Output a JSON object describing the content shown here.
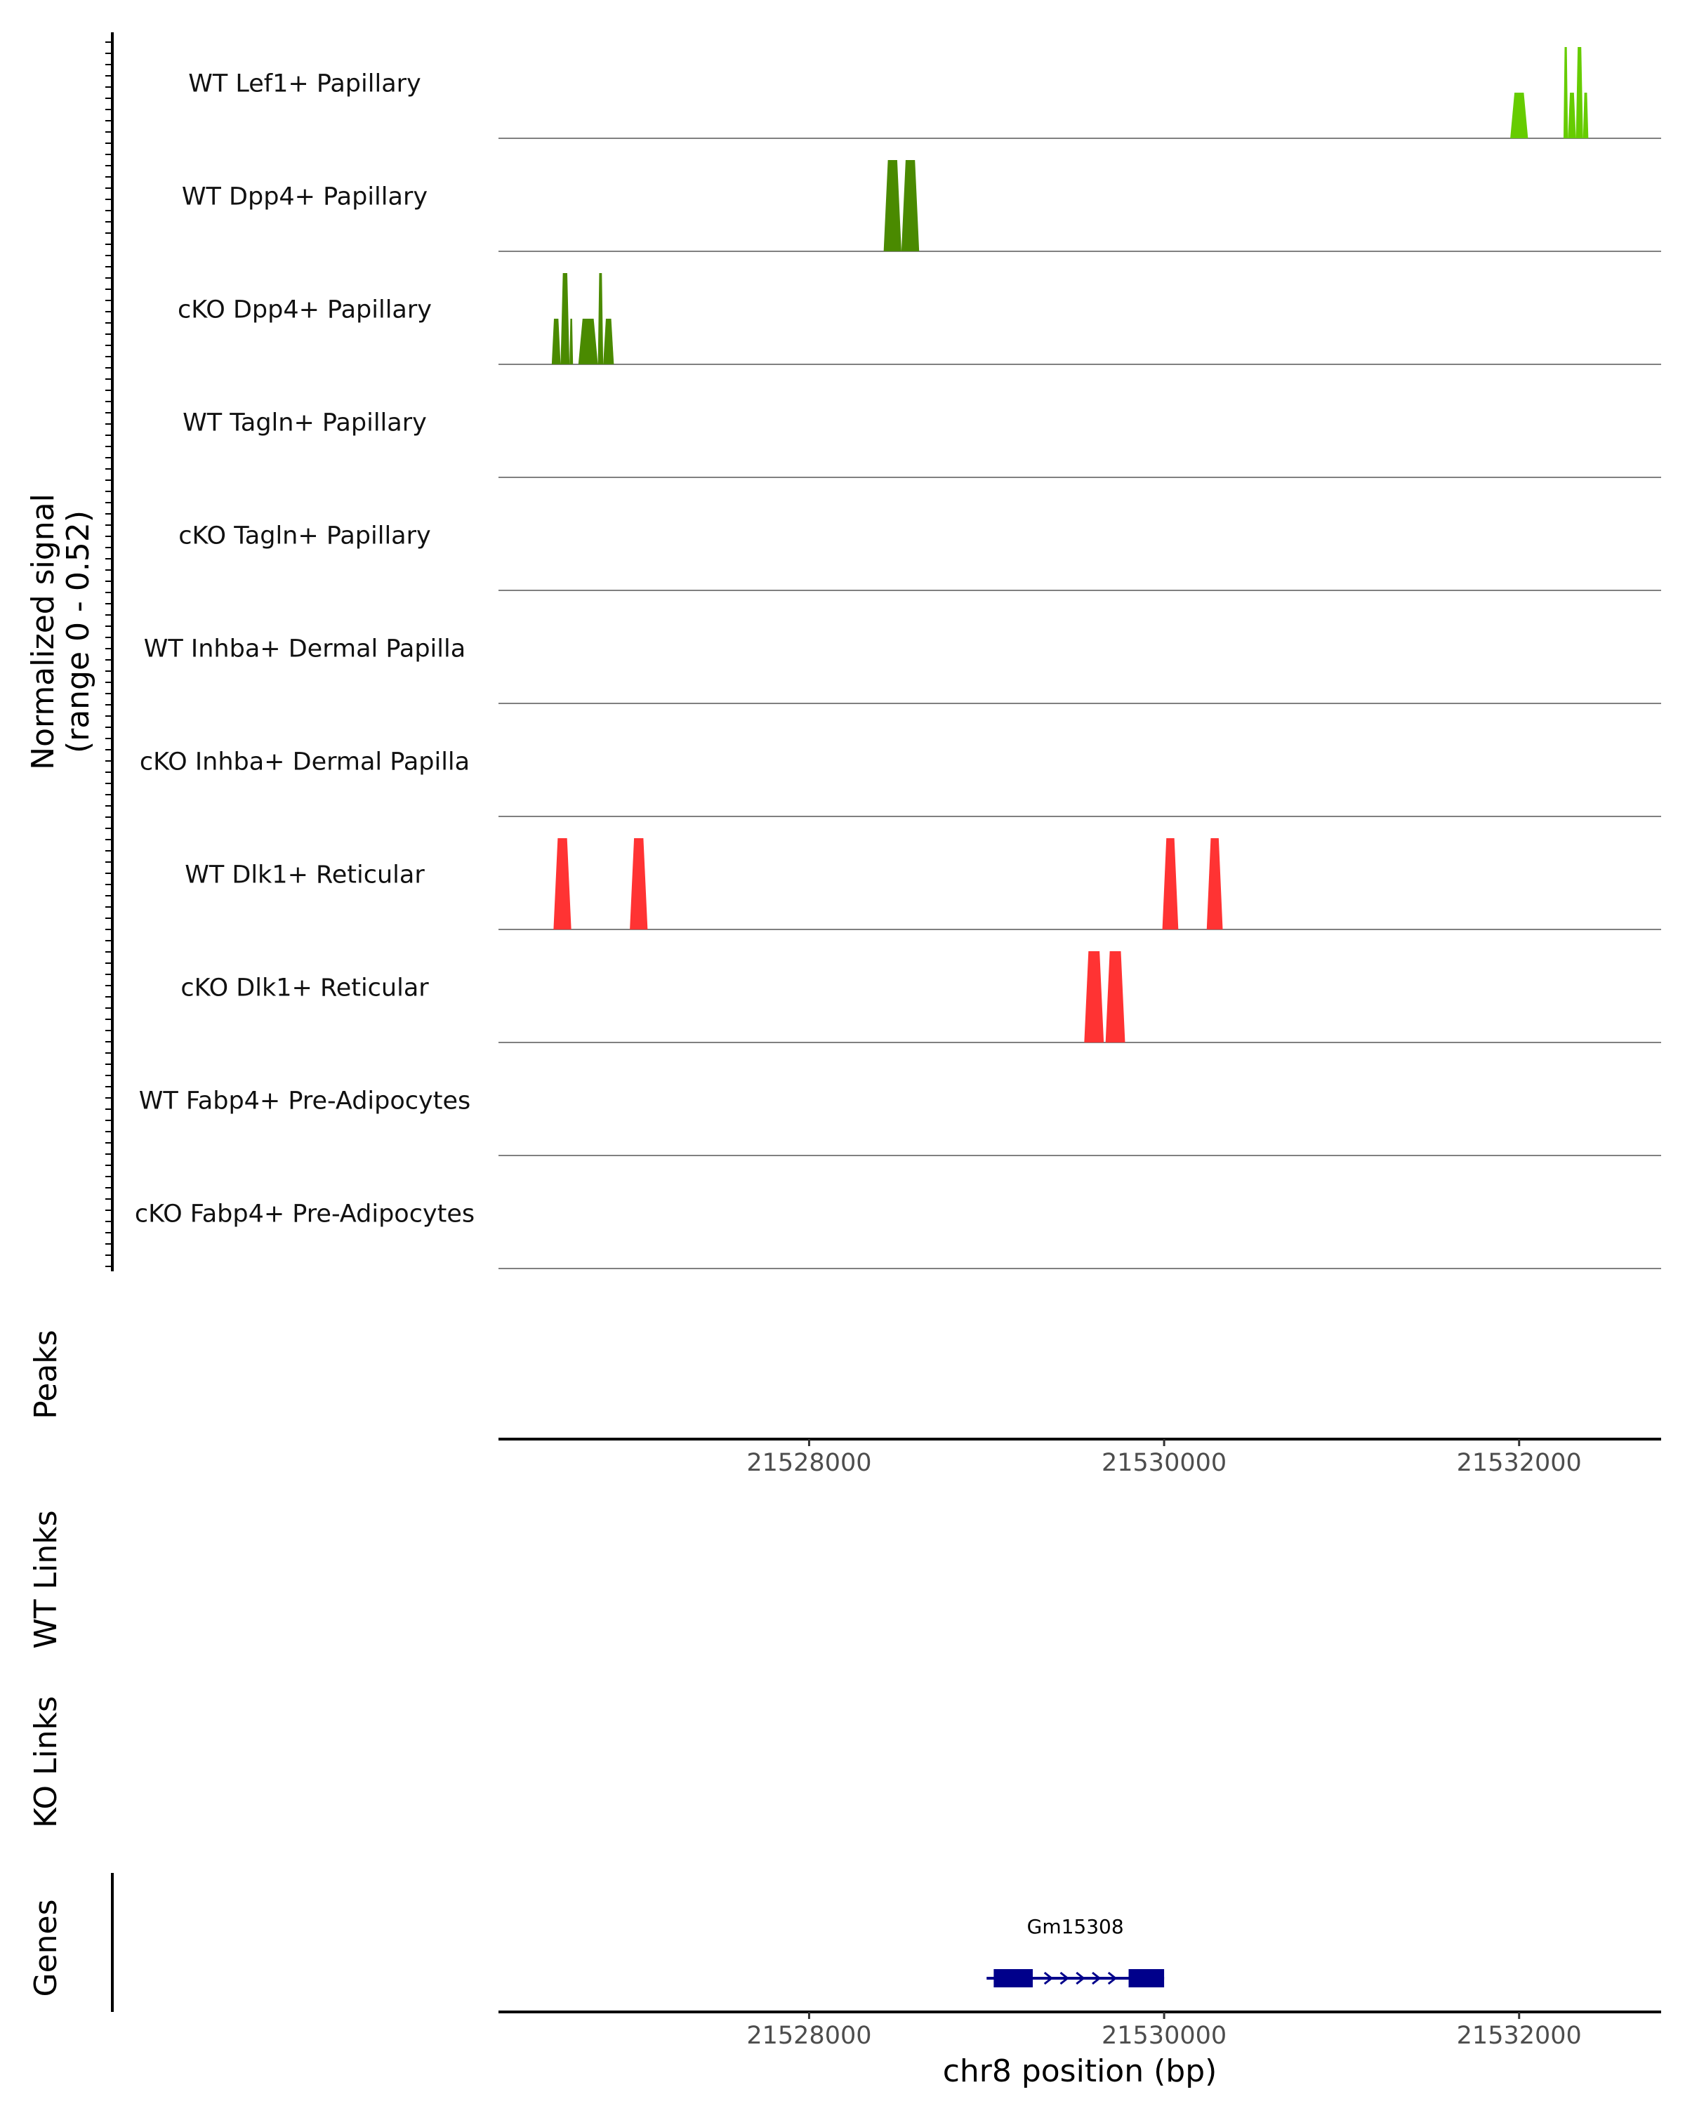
{
  "chart_data": {
    "type": "area",
    "title": "",
    "xlabel": "chr8 position (bp)",
    "ylabel": "Normalized signal\n(range 0 - 0.52)",
    "ylim": [
      0,
      0.52
    ],
    "xlim": [
      21526250,
      21532800
    ],
    "x_ticks": [
      21528000,
      21530000,
      21532000
    ],
    "x_tick_labels": [
      "21528000",
      "21530000",
      "21532000"
    ],
    "track_labels": {
      "coverage": "Normalized signal",
      "coverage_range": "(range 0 - 0.52)",
      "peaks": "Peaks",
      "wt_links": "WT Links",
      "ko_links": "KO Links",
      "genes": "Genes"
    },
    "series": [
      {
        "name": "WT Lef1+ Papillary",
        "color": "#66cc00",
        "regions": [
          [
            21531950,
            21532050,
            0.26
          ],
          [
            21532250,
            21532275,
            0.52
          ],
          [
            21532275,
            21532320,
            0.26
          ],
          [
            21532320,
            21532360,
            0.52
          ],
          [
            21532360,
            21532390,
            0.26
          ]
        ]
      },
      {
        "name": "WT Dpp4+ Papillary",
        "color": "#4a8a00",
        "regions": [
          [
            21528420,
            21528520,
            0.52
          ],
          [
            21528520,
            21528620,
            0.52
          ]
        ]
      },
      {
        "name": "cKO Dpp4+ Papillary",
        "color": "#4a8a00",
        "regions": [
          [
            21526550,
            21526600,
            0.26
          ],
          [
            21526600,
            21526650,
            0.52
          ],
          [
            21526650,
            21526670,
            0.26
          ],
          [
            21526700,
            21526810,
            0.26
          ],
          [
            21526810,
            21526840,
            0.52
          ],
          [
            21526840,
            21526900,
            0.26
          ]
        ]
      },
      {
        "name": "WT Tagln+ Papillary",
        "color": "#4a8a00",
        "regions": []
      },
      {
        "name": "cKO Tagln+ Papillary",
        "color": "#4a8a00",
        "regions": []
      },
      {
        "name": "WT Inhba+ Dermal Papilla",
        "color": "#4a8a00",
        "regions": []
      },
      {
        "name": "cKO Inhba+ Dermal Papilla",
        "color": "#4a8a00",
        "regions": []
      },
      {
        "name": "WT Dlk1+ Reticular",
        "color": "#ff3333",
        "regions": [
          [
            21526560,
            21526660,
            0.52
          ],
          [
            21526990,
            21527090,
            0.52
          ],
          [
            21529990,
            21530080,
            0.52
          ],
          [
            21530240,
            21530330,
            0.52
          ]
        ]
      },
      {
        "name": "cKO Dlk1+ Reticular",
        "color": "#ff3333",
        "regions": [
          [
            21529550,
            21529660,
            0.52
          ],
          [
            21529670,
            21529780,
            0.52
          ]
        ]
      },
      {
        "name": "WT Fabp4+ Pre-Adipocytes",
        "color": "#66cc00",
        "regions": []
      },
      {
        "name": "cKO Fabp4+ Pre-Adipocytes",
        "color": "#66cc00",
        "regions": []
      }
    ],
    "genes": [
      {
        "name": "Gm15308",
        "start": 21529000,
        "end": 21530000,
        "strand": "+",
        "color": "#00008b",
        "exons": [
          [
            21529040,
            21529260
          ],
          [
            21529800,
            21530000
          ]
        ]
      }
    ]
  }
}
